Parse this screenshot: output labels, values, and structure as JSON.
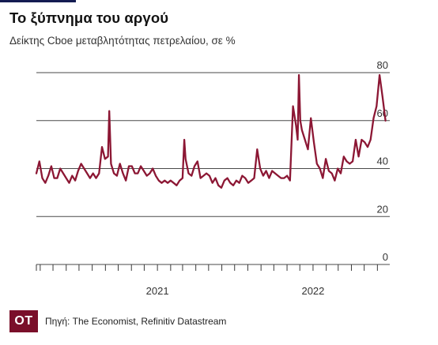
{
  "title": "Το ξύπνημα του αργού",
  "subtitle": "Δείκτης Cboe μεταβλητότητας πετρελαίου, σε %",
  "logo_text": "OT",
  "source": "Πηγή: The Economist, Refinitiv Datastream",
  "colors": {
    "line": "#8c1734",
    "grid": "#4a4a4a",
    "axis": "#3a3a3a",
    "logo_bg": "#7a0f2a"
  },
  "chart_data": {
    "type": "line",
    "ylim": [
      0,
      80
    ],
    "yticks": [
      0,
      20,
      40,
      60,
      80
    ],
    "xlim": [
      "2020-03-23",
      "2022-06-30"
    ],
    "xtick_labels": [
      {
        "label": "2021",
        "x": "2021-01-01"
      },
      {
        "label": "2022",
        "x": "2022-01-01"
      }
    ],
    "grid": "horizontal",
    "series": [
      {
        "x": [
          "2020-03-23",
          "2020-03-30",
          "2020-04-06",
          "2020-04-13",
          "2020-04-20",
          "2020-04-27",
          "2020-05-04",
          "2020-05-11",
          "2020-05-18",
          "2020-05-25",
          "2020-06-01",
          "2020-06-08",
          "2020-06-15",
          "2020-06-22",
          "2020-06-29",
          "2020-07-06",
          "2020-07-13",
          "2020-07-20",
          "2020-07-27",
          "2020-08-03",
          "2020-08-10",
          "2020-08-17",
          "2020-08-24",
          "2020-08-31",
          "2020-09-07",
          "2020-09-10",
          "2020-09-14",
          "2020-09-21",
          "2020-09-28",
          "2020-10-05",
          "2020-10-12",
          "2020-10-19",
          "2020-10-26",
          "2020-11-02",
          "2020-11-09",
          "2020-11-16",
          "2020-11-23",
          "2020-11-30",
          "2020-12-07",
          "2020-12-14",
          "2020-12-21",
          "2020-12-28",
          "2021-01-04",
          "2021-01-11",
          "2021-01-18",
          "2021-01-25",
          "2021-02-01",
          "2021-02-08",
          "2021-02-15",
          "2021-02-22",
          "2021-03-01",
          "2021-03-05",
          "2021-03-08",
          "2021-03-15",
          "2021-03-22",
          "2021-03-29",
          "2021-04-05",
          "2021-04-12",
          "2021-04-19",
          "2021-04-26",
          "2021-05-03",
          "2021-05-10",
          "2021-05-17",
          "2021-05-24",
          "2021-05-31",
          "2021-06-07",
          "2021-06-14",
          "2021-06-21",
          "2021-06-28",
          "2021-07-05",
          "2021-07-12",
          "2021-07-19",
          "2021-07-26",
          "2021-08-02",
          "2021-08-09",
          "2021-08-16",
          "2021-08-23",
          "2021-08-30",
          "2021-09-06",
          "2021-09-13",
          "2021-09-20",
          "2021-09-27",
          "2021-10-04",
          "2021-10-11",
          "2021-10-18",
          "2021-10-25",
          "2021-11-01",
          "2021-11-08",
          "2021-11-15",
          "2021-11-22",
          "2021-11-26",
          "2021-11-29",
          "2021-12-02",
          "2021-12-06",
          "2021-12-13",
          "2021-12-20",
          "2021-12-27",
          "2022-01-03",
          "2022-01-10",
          "2022-01-17",
          "2022-01-24",
          "2022-01-31",
          "2022-02-07",
          "2022-02-14",
          "2022-02-21",
          "2022-02-28",
          "2022-03-07",
          "2022-03-14",
          "2022-03-21",
          "2022-03-28",
          "2022-04-04",
          "2022-04-11",
          "2022-04-18",
          "2022-04-25",
          "2022-05-02",
          "2022-05-09",
          "2022-05-16",
          "2022-05-23",
          "2022-05-30",
          "2022-06-06",
          "2022-06-13",
          "2022-06-20"
        ],
        "y": [
          38,
          43,
          36,
          34,
          37,
          41,
          36,
          36,
          40,
          38,
          36,
          34,
          37,
          35,
          39,
          42,
          40,
          38,
          36,
          38,
          36,
          38,
          49,
          44,
          45,
          64,
          42,
          38,
          37,
          42,
          38,
          35,
          41,
          41,
          38,
          38,
          41,
          39,
          37,
          38,
          40,
          37,
          35,
          34,
          35,
          34,
          35,
          34,
          33,
          35,
          36,
          52,
          44,
          38,
          37,
          41,
          43,
          36,
          37,
          38,
          37,
          34,
          36,
          33,
          32,
          35,
          36,
          34,
          33,
          35,
          34,
          37,
          36,
          34,
          35,
          36,
          48,
          40,
          37,
          39,
          36,
          39,
          38,
          37,
          36,
          36,
          37,
          35,
          66,
          58,
          52,
          79,
          60,
          56,
          52,
          48,
          61,
          51,
          42,
          40,
          36,
          44,
          39,
          38,
          35,
          40,
          38,
          45,
          43,
          42,
          43,
          52,
          45,
          52,
          51,
          49,
          52,
          61,
          66,
          79,
          70,
          60
        ]
      }
    ]
  }
}
